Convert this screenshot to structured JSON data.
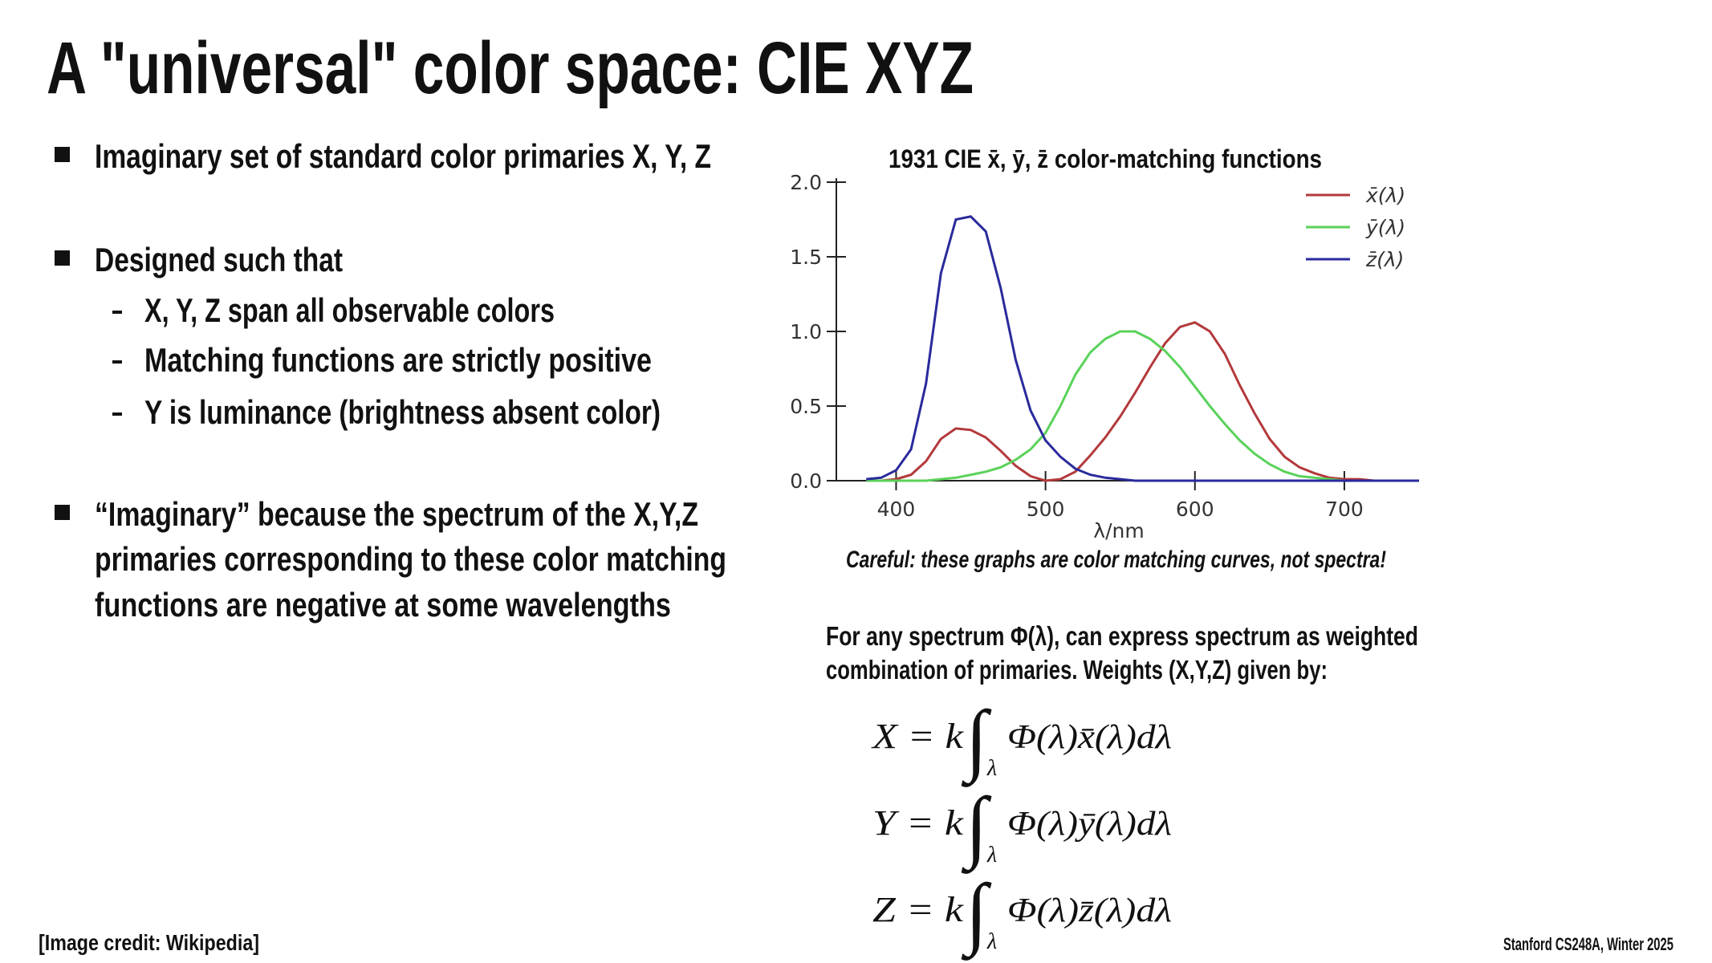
{
  "slide": {
    "title": "A \"universal\" color space: CIE XYZ",
    "bullets": [
      "Imaginary set of standard color primaries X, Y, Z",
      "Designed such that",
      "“Imaginary” because the spectrum of the X,Y,Z"
    ],
    "subbullets": [
      "X, Y, Z span all observable colors",
      "Matching functions are strictly positive",
      "Y is luminance (brightness absent color)"
    ],
    "continuation": [
      "primaries corresponding to these color matching",
      "functions are negative at some wavelengths"
    ],
    "caption": "Careful: these graphs are color matching curves, not spectra!",
    "paragraph": [
      "For any spectrum Φ(λ), can express spectrum as weighted",
      "combination of primaries. Weights (X,Y,Z) given by:"
    ],
    "formulas": [
      {
        "lhs": "X = k",
        "integral": "∫",
        "sub": "λ",
        "rhs": "Φ(λ)x̄(λ)dλ"
      },
      {
        "lhs": "Y = k",
        "integral": "∫",
        "sub": "λ",
        "rhs": "Φ(λ)ȳ(λ)dλ"
      },
      {
        "lhs": "Z = k",
        "integral": "∫",
        "sub": "λ",
        "rhs": "Φ(λ)z̄(λ)dλ"
      }
    ],
    "credit": "[Image credit: Wikipedia]",
    "footer": "Stanford CS248A, Winter 2025"
  },
  "chart_data": {
    "type": "line",
    "title": "1931 CIE x̄, ȳ, z̄ color-matching functions",
    "x_label": "λ/nm",
    "x": [
      380,
      390,
      400,
      410,
      420,
      430,
      440,
      450,
      460,
      470,
      480,
      490,
      500,
      510,
      520,
      530,
      540,
      550,
      560,
      570,
      580,
      590,
      600,
      610,
      620,
      630,
      640,
      650,
      660,
      670,
      680,
      690,
      700,
      710,
      720,
      730,
      740,
      750
    ],
    "series": [
      {
        "name": "x̄(λ)",
        "color": "#b3393b",
        "values": [
          0,
          0,
          0.01,
          0.04,
          0.13,
          0.28,
          0.35,
          0.34,
          0.29,
          0.2,
          0.1,
          0.03,
          0,
          0.01,
          0.06,
          0.17,
          0.29,
          0.43,
          0.59,
          0.76,
          0.92,
          1.03,
          1.06,
          1,
          0.85,
          0.64,
          0.45,
          0.28,
          0.16,
          0.09,
          0.05,
          0.02,
          0.01,
          0.01,
          0,
          0,
          0,
          0
        ]
      },
      {
        "name": "ȳ(λ)",
        "color": "#5ad25a",
        "values": [
          0,
          0,
          0,
          0,
          0,
          0.01,
          0.02,
          0.04,
          0.06,
          0.09,
          0.14,
          0.21,
          0.32,
          0.5,
          0.71,
          0.86,
          0.95,
          1,
          1,
          0.95,
          0.87,
          0.76,
          0.63,
          0.5,
          0.38,
          0.27,
          0.18,
          0.11,
          0.06,
          0.03,
          0.02,
          0.01,
          0,
          0,
          0,
          0,
          0,
          0
        ]
      },
      {
        "name": "z̄(λ)",
        "color": "#2a2a9c",
        "values": [
          0.01,
          0.02,
          0.07,
          0.21,
          0.65,
          1.39,
          1.75,
          1.77,
          1.67,
          1.29,
          0.81,
          0.47,
          0.27,
          0.16,
          0.08,
          0.04,
          0.02,
          0.01,
          0,
          0,
          0,
          0,
          0,
          0,
          0,
          0,
          0,
          0,
          0,
          0,
          0,
          0,
          0,
          0,
          0,
          0,
          0,
          0
        ]
      }
    ],
    "xlim": [
      360,
      750
    ],
    "xticks": [
      400,
      500,
      600,
      700
    ],
    "ylim": [
      0,
      2
    ],
    "yticks": [
      {
        "value": 0,
        "label": "0.0"
      },
      0.5,
      {
        "value": 1,
        "label": "1.0"
      },
      1.5,
      {
        "value": 2,
        "label": "2.0"
      }
    ],
    "legend": "upper right"
  }
}
